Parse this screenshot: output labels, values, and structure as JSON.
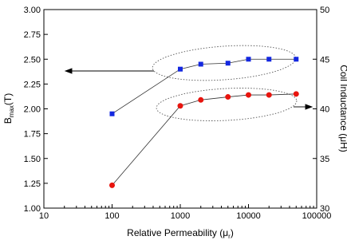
{
  "chart_data": {
    "type": "line",
    "xlabel": {
      "main": "Relative Permeability (μ",
      "sub": "r",
      "suffix": ")"
    },
    "ylabel": {
      "main": "B",
      "sub": "max",
      "suffix": "(T)"
    },
    "y2label": "Coil Inductance (μH)",
    "x": [
      100,
      1000,
      2000,
      5000,
      10000,
      20000,
      50000
    ],
    "xscale": "log",
    "xlim": [
      10,
      100000
    ],
    "xticks": [
      10,
      100,
      1000,
      10000,
      100000
    ],
    "ylim": [
      1.0,
      3.0
    ],
    "yticks": [
      {
        "value": 1.0,
        "label": "1.00"
      },
      {
        "value": 1.25,
        "label": "1.25"
      },
      {
        "value": 1.5,
        "label": "1.50"
      },
      {
        "value": 1.75,
        "label": "1.75"
      },
      {
        "value": 2.0,
        "label": "2.00"
      },
      {
        "value": 2.25,
        "label": "2.25"
      },
      {
        "value": 2.5,
        "label": "2.50"
      },
      {
        "value": 2.75,
        "label": "2.75"
      },
      {
        "value": 3.0,
        "label": "3.00"
      }
    ],
    "y2lim": [
      30,
      50
    ],
    "y2ticks": [
      30,
      35,
      40,
      45,
      50
    ],
    "series": [
      {
        "color": "#1428e0",
        "marker": "square",
        "values": [
          1.95,
          2.4,
          2.45,
          2.46,
          2.5,
          2.5,
          2.5
        ]
      },
      {
        "color": "#e8140e",
        "marker": "circle",
        "axis": "y2",
        "values": [
          32.3,
          40.3,
          40.9,
          41.2,
          41.4,
          41.4,
          41.5
        ]
      }
    ]
  }
}
